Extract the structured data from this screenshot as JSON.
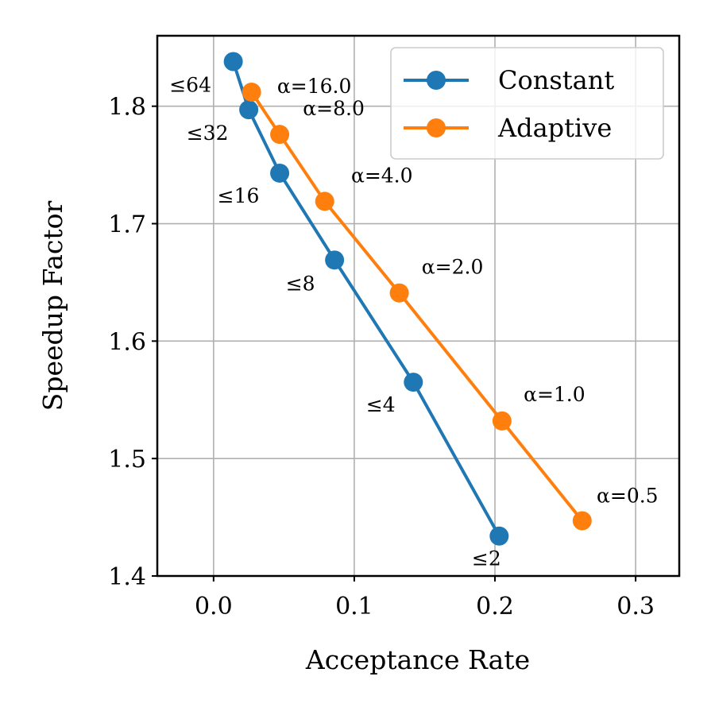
{
  "chart_data": {
    "type": "line",
    "title": "",
    "xlabel": "Acceptance Rate",
    "ylabel": "Speedup Factor",
    "xlim": [
      -0.04,
      0.331
    ],
    "ylim": [
      1.4,
      1.86
    ],
    "xticks": [
      0.0,
      0.1,
      0.2,
      0.3
    ],
    "xtick_labels": [
      "0.0",
      "0.1",
      "0.2",
      "0.3"
    ],
    "yticks": [
      1.4,
      1.5,
      1.6,
      1.7,
      1.8
    ],
    "ytick_labels": [
      "1.4",
      "1.5",
      "1.6",
      "1.7",
      "1.8"
    ],
    "grid": true,
    "legend_position": "top-right",
    "series": [
      {
        "name": "Constant",
        "color": "#1f77b4",
        "x": [
          0.014,
          0.025,
          0.047,
          0.086,
          0.142,
          0.203
        ],
        "y": [
          1.838,
          1.797,
          1.743,
          1.669,
          1.565,
          1.434
        ],
        "point_labels": [
          "≤64",
          "≤32",
          "≤16",
          "≤8",
          "≤4",
          "≤2"
        ]
      },
      {
        "name": "Adaptive",
        "color": "#ff7f0e",
        "x": [
          0.027,
          0.047,
          0.079,
          0.132,
          0.205,
          0.262
        ],
        "y": [
          1.812,
          1.776,
          1.719,
          1.641,
          1.532,
          1.447
        ],
        "point_labels": [
          "α=16.0",
          "α=8.0",
          "α=4.0",
          "α=2.0",
          "α=1.0",
          "α=0.5"
        ]
      }
    ]
  }
}
